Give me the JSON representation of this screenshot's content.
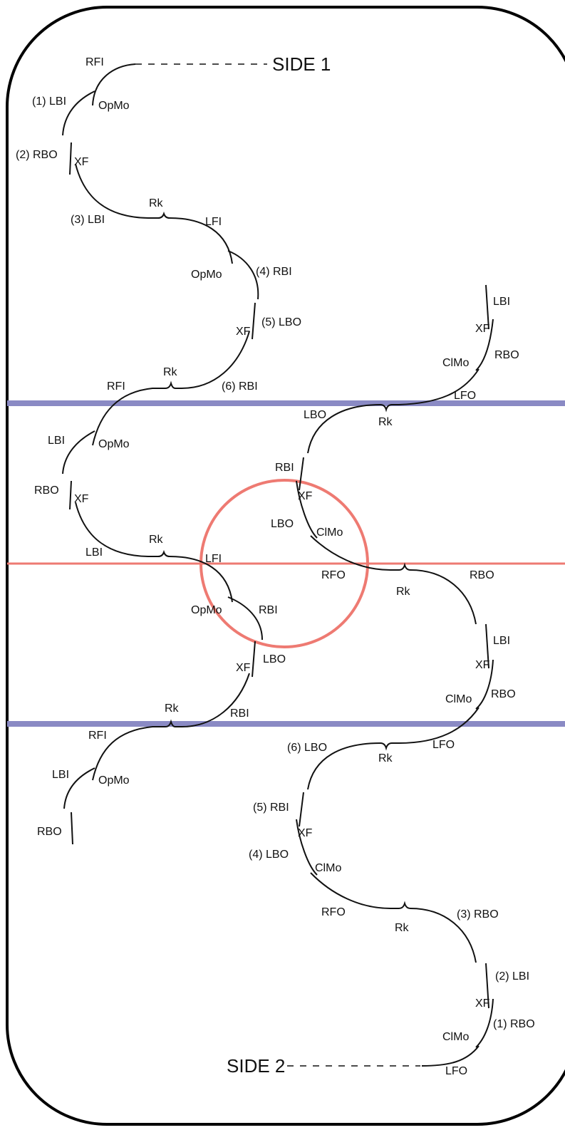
{
  "diagram": {
    "side1_label": "SIDE 1",
    "side2_label": "SIDE 2",
    "colors": {
      "outline": "#000000",
      "track": "#111111",
      "blue_line": "#8a8ac4",
      "red_line": "#ee7a72",
      "circle": "#ee7a72"
    },
    "labels": [
      "RFI",
      "(1) LBI",
      "OpMo",
      "(2) RBO",
      "XF",
      "(3) LBI",
      "Rk",
      "LFI",
      "OpMo",
      "(4) RBI",
      "(5) LBO",
      "XF",
      "RFI",
      "Rk",
      "(6) RBI",
      "LBI",
      "XF",
      "ClMo",
      "RBO",
      "LFO",
      "LBO",
      "Rk",
      "LBI",
      "OpMo",
      "RBI",
      "RBO",
      "XF",
      "XF",
      "LBO",
      "ClMo",
      "LBI",
      "Rk",
      "LFI",
      "RFO",
      "Rk",
      "RBO",
      "OpMo",
      "RBI",
      "LBI",
      "XF",
      "LBO",
      "XF",
      "ClMo",
      "RBO",
      "Rk",
      "RBI",
      "RFI",
      "LFO",
      "(6) LBO",
      "Rk",
      "LBI",
      "OpMo",
      "RBO",
      "(5) RBI",
      "XF",
      "(4) LBO",
      "ClMo",
      "RFO",
      "Rk",
      "(3) RBO",
      "(2) LBI",
      "XF",
      "ClMo",
      "(1) RBO",
      "LFO"
    ]
  }
}
